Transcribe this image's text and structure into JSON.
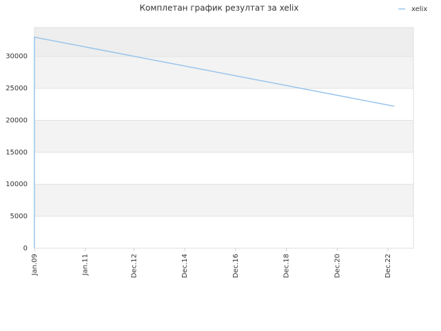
{
  "chart_data": {
    "type": "line",
    "title": "Комплетан график резултат за xelix",
    "x": [
      "2009-01",
      "2009-01",
      "2023-03"
    ],
    "series": [
      {
        "name": "xelix",
        "color": "#98c4ec",
        "values": [
          0,
          33000,
          22200
        ]
      }
    ],
    "xlim": [
      "2009-01",
      "2023-12"
    ],
    "xticks": [
      {
        "value": "2009-01",
        "label": "Jan.09"
      },
      {
        "value": "2011-01",
        "label": "Jan.11"
      },
      {
        "value": "2012-12",
        "label": "Dec.12"
      },
      {
        "value": "2014-12",
        "label": "Dec.14"
      },
      {
        "value": "2016-12",
        "label": "Dec.16"
      },
      {
        "value": "2018-12",
        "label": "Dec.18"
      },
      {
        "value": "2020-12",
        "label": "Dec.20"
      },
      {
        "value": "2022-12",
        "label": "Dec.22"
      }
    ],
    "ylim": [
      0,
      34500
    ],
    "yticks": [
      0,
      5000,
      10000,
      15000,
      20000,
      25000,
      30000
    ],
    "grid": true,
    "legend": "top-right"
  }
}
